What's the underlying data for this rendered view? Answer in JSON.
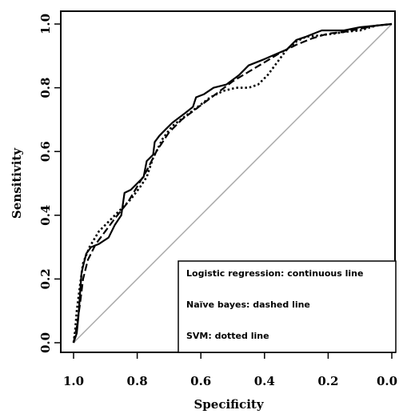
{
  "chart_data": {
    "type": "line",
    "title": "",
    "xlabel": "Specificity",
    "ylabel": "Sensitivity",
    "xlim": [
      1.0,
      0.0
    ],
    "ylim": [
      0.0,
      1.0
    ],
    "x_reversed": true,
    "grid": false,
    "xticks": [
      "1.0",
      "0.8",
      "0.6",
      "0.4",
      "0.2",
      "0.0"
    ],
    "yticks": [
      "0.0",
      "0.2",
      "0.4",
      "0.6",
      "0.8",
      "1.0"
    ],
    "reference_line": {
      "from": [
        1.0,
        0.0
      ],
      "to": [
        0.0,
        1.0
      ],
      "color": "#a8a8a8"
    },
    "legend": {
      "placement": "bottom-right",
      "entries": [
        "Logistic regression: continuous line",
        "Naïve bayes: dashed line",
        "SVM: dotted line"
      ]
    },
    "series": [
      {
        "style": "solid",
        "points": [
          [
            1.0,
            0.0
          ],
          [
            0.99,
            0.03
          ],
          [
            0.985,
            0.08
          ],
          [
            0.98,
            0.15
          ],
          [
            0.975,
            0.22
          ],
          [
            0.965,
            0.26
          ],
          [
            0.96,
            0.28
          ],
          [
            0.945,
            0.3
          ],
          [
            0.92,
            0.31
          ],
          [
            0.89,
            0.33
          ],
          [
            0.87,
            0.37
          ],
          [
            0.85,
            0.4
          ],
          [
            0.84,
            0.47
          ],
          [
            0.82,
            0.48
          ],
          [
            0.8,
            0.5
          ],
          [
            0.78,
            0.52
          ],
          [
            0.77,
            0.57
          ],
          [
            0.75,
            0.59
          ],
          [
            0.745,
            0.63
          ],
          [
            0.73,
            0.65
          ],
          [
            0.71,
            0.67
          ],
          [
            0.69,
            0.69
          ],
          [
            0.65,
            0.72
          ],
          [
            0.625,
            0.74
          ],
          [
            0.615,
            0.77
          ],
          [
            0.59,
            0.78
          ],
          [
            0.56,
            0.8
          ],
          [
            0.52,
            0.81
          ],
          [
            0.48,
            0.84
          ],
          [
            0.45,
            0.87
          ],
          [
            0.4,
            0.89
          ],
          [
            0.33,
            0.92
          ],
          [
            0.3,
            0.95
          ],
          [
            0.27,
            0.96
          ],
          [
            0.22,
            0.98
          ],
          [
            0.15,
            0.98
          ],
          [
            0.1,
            0.99
          ],
          [
            0.05,
            0.995
          ],
          [
            0.0,
            1.0
          ]
        ]
      },
      {
        "style": "dashed",
        "points": [
          [
            1.0,
            0.0
          ],
          [
            0.99,
            0.05
          ],
          [
            0.98,
            0.12
          ],
          [
            0.97,
            0.2
          ],
          [
            0.955,
            0.26
          ],
          [
            0.93,
            0.31
          ],
          [
            0.9,
            0.35
          ],
          [
            0.87,
            0.39
          ],
          [
            0.83,
            0.44
          ],
          [
            0.8,
            0.49
          ],
          [
            0.77,
            0.54
          ],
          [
            0.74,
            0.6
          ],
          [
            0.7,
            0.66
          ],
          [
            0.66,
            0.7
          ],
          [
            0.62,
            0.73
          ],
          [
            0.58,
            0.76
          ],
          [
            0.54,
            0.79
          ],
          [
            0.5,
            0.82
          ],
          [
            0.45,
            0.85
          ],
          [
            0.4,
            0.88
          ],
          [
            0.35,
            0.91
          ],
          [
            0.3,
            0.935
          ],
          [
            0.25,
            0.955
          ],
          [
            0.2,
            0.97
          ],
          [
            0.15,
            0.975
          ],
          [
            0.1,
            0.985
          ],
          [
            0.05,
            0.995
          ],
          [
            0.0,
            1.0
          ]
        ]
      },
      {
        "style": "dotted",
        "points": [
          [
            1.0,
            0.0
          ],
          [
            0.995,
            0.04
          ],
          [
            0.99,
            0.1
          ],
          [
            0.98,
            0.18
          ],
          [
            0.97,
            0.25
          ],
          [
            0.95,
            0.3
          ],
          [
            0.92,
            0.35
          ],
          [
            0.89,
            0.38
          ],
          [
            0.86,
            0.41
          ],
          [
            0.82,
            0.45
          ],
          [
            0.79,
            0.49
          ],
          [
            0.77,
            0.52
          ],
          [
            0.75,
            0.58
          ],
          [
            0.72,
            0.64
          ],
          [
            0.69,
            0.68
          ],
          [
            0.65,
            0.71
          ],
          [
            0.61,
            0.74
          ],
          [
            0.57,
            0.77
          ],
          [
            0.53,
            0.79
          ],
          [
            0.49,
            0.8
          ],
          [
            0.45,
            0.8
          ],
          [
            0.42,
            0.81
          ],
          [
            0.39,
            0.84
          ],
          [
            0.36,
            0.88
          ],
          [
            0.33,
            0.92
          ],
          [
            0.3,
            0.945
          ],
          [
            0.27,
            0.96
          ],
          [
            0.22,
            0.965
          ],
          [
            0.18,
            0.97
          ],
          [
            0.15,
            0.975
          ],
          [
            0.1,
            0.98
          ],
          [
            0.05,
            0.995
          ],
          [
            0.0,
            1.0
          ]
        ]
      }
    ]
  }
}
